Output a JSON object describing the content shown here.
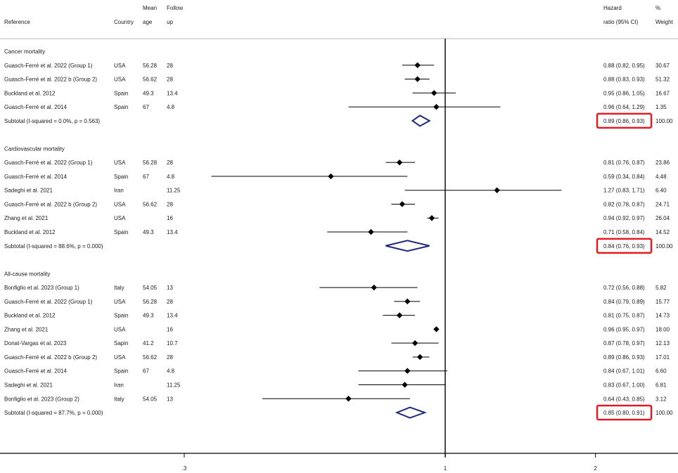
{
  "colors": {
    "text": "#1a1a1a",
    "line": "#000000",
    "diamond": "#1f2a7a",
    "highlight": "#e8141b"
  },
  "chart_data": {
    "type": "forest",
    "x_scale": "log",
    "x_ticks": [
      {
        "value": 0.3,
        "label": ".3"
      },
      {
        "value": 1,
        "label": "1"
      },
      {
        "value": 2,
        "label": "2"
      }
    ],
    "null_line": 1,
    "headers": {
      "reference": "Reference",
      "country": "Country",
      "mean_age_1": "Mean",
      "mean_age_2": "age",
      "follow_up_1": "Follow",
      "follow_up_2": "up",
      "hr_1": "Hazard",
      "hr_2": "ratio (95% CI)",
      "weight_1": "%",
      "weight_2": "Weight"
    },
    "groups": [
      {
        "name": "Cancer mortality",
        "studies": [
          {
            "reference": "Guasch-Ferré et al. 2022 (Group 1)",
            "country": "USA",
            "age": "56.28",
            "follow_up": "28",
            "hr": 0.88,
            "lo": 0.82,
            "hi": 0.95,
            "ci_text": "0.88 (0.82, 0.95)",
            "weight": "30.67"
          },
          {
            "reference": "Guasch-Ferré et al. 2022 b (Group 2)",
            "country": "USA",
            "age": "56.62",
            "follow_up": "28",
            "hr": 0.88,
            "lo": 0.83,
            "hi": 0.93,
            "ci_text": "0.88 (0.83, 0.93)",
            "weight": "51.32"
          },
          {
            "reference": "Buckland et al. 2012",
            "country": "Spain",
            "age": "49.3",
            "follow_up": "13.4",
            "hr": 0.95,
            "lo": 0.86,
            "hi": 1.05,
            "ci_text": "0.95 (0.86, 1.05)",
            "weight": "16.67"
          },
          {
            "reference": "Guasch-Ferré et al. 2014",
            "country": "Spain",
            "age": "67",
            "follow_up": "4.8",
            "hr": 0.96,
            "lo": 0.64,
            "hi": 1.29,
            "ci_text": "0.96 (0.64, 1.29)",
            "weight": "1.35"
          }
        ],
        "subtotal": {
          "label": "Subtotal  (I-squared = 0.0%, p = 0.563)",
          "hr": 0.89,
          "lo": 0.86,
          "hi": 0.93,
          "ci_text": "0.89 (0.86, 0.93)",
          "weight": "100.00"
        }
      },
      {
        "name": "Cardiovascular mortality",
        "studies": [
          {
            "reference": "Guasch-Ferré et al. 2022 (Group 1)",
            "country": "USA",
            "age": "56.28",
            "follow_up": "28",
            "hr": 0.81,
            "lo": 0.76,
            "hi": 0.87,
            "ci_text": "0.81 (0.76, 0.87)",
            "weight": "23.86"
          },
          {
            "reference": "Guasch-Ferré et al. 2014",
            "country": "Spain",
            "age": "67",
            "follow_up": "4.8",
            "hr": 0.59,
            "lo": 0.34,
            "hi": 0.84,
            "ci_text": "0.59 (0.34, 0.84)",
            "weight": "4.48"
          },
          {
            "reference": "Sadeghi et al. 2021",
            "country": "Iran",
            "age": "",
            "follow_up": "11.25",
            "hr": 1.27,
            "lo": 0.83,
            "hi": 1.71,
            "ci_text": "1.27 (0.83, 1.71)",
            "weight": "6.40"
          },
          {
            "reference": "Guasch-Ferré et al. 2022 b (Group 2)",
            "country": "USA",
            "age": "56.62",
            "follow_up": "28",
            "hr": 0.82,
            "lo": 0.78,
            "hi": 0.87,
            "ci_text": "0.82 (0.78, 0.87)",
            "weight": "24.71"
          },
          {
            "reference": "Zhang et al. 2021",
            "country": "USA",
            "age": "",
            "follow_up": "16",
            "hr": 0.94,
            "lo": 0.92,
            "hi": 0.97,
            "ci_text": "0.94 (0.92, 0.97)",
            "weight": "26.04"
          },
          {
            "reference": "Buckland et al. 2012",
            "country": "Spain",
            "age": "49.3",
            "follow_up": "13.4",
            "hr": 0.71,
            "lo": 0.58,
            "hi": 0.84,
            "ci_text": "0.71 (0.58, 0.84)",
            "weight": "14.52"
          }
        ],
        "subtotal": {
          "label": "Subtotal  (I-squared = 88.6%, p = 0.000)",
          "hr": 0.84,
          "lo": 0.76,
          "hi": 0.93,
          "ci_text": "0.84 (0.76, 0.93)",
          "weight": "100.00"
        }
      },
      {
        "name": "All-cause mortality",
        "studies": [
          {
            "reference": "Bonfiglio et al. 2023 (Group 1)",
            "country": "Italy",
            "age": "54.05",
            "follow_up": "13",
            "hr": 0.72,
            "lo": 0.56,
            "hi": 0.88,
            "ci_text": "0.72 (0.56, 0.88)",
            "weight": "5.82"
          },
          {
            "reference": "Guasch-Ferré et al. 2022 (Group 1)",
            "country": "USA",
            "age": "56.28",
            "follow_up": "28",
            "hr": 0.84,
            "lo": 0.79,
            "hi": 0.89,
            "ci_text": "0.84 (0.79, 0.89)",
            "weight": "15.77"
          },
          {
            "reference": "Buckland et al. 2012",
            "country": "Spain",
            "age": "49.3",
            "follow_up": "13.4",
            "hr": 0.81,
            "lo": 0.75,
            "hi": 0.87,
            "ci_text": "0.81 (0.75, 0.87)",
            "weight": "14.73"
          },
          {
            "reference": "Zhang et al. 2021",
            "country": "USA",
            "age": "",
            "follow_up": "16",
            "hr": 0.96,
            "lo": 0.95,
            "hi": 0.97,
            "ci_text": "0.96 (0.95, 0.97)",
            "weight": "18.00"
          },
          {
            "reference": "Donat-Vargas et al. 2023",
            "country": "Sapin",
            "age": "41.2",
            "follow_up": "10.7",
            "hr": 0.87,
            "lo": 0.78,
            "hi": 0.97,
            "ci_text": "0.87 (0.78, 0.97)",
            "weight": "12.13"
          },
          {
            "reference": "Guasch-Ferré et al. 2022 b (Group 2)",
            "country": "USA",
            "age": "56.62",
            "follow_up": "28",
            "hr": 0.89,
            "lo": 0.86,
            "hi": 0.93,
            "ci_text": "0.89 (0.86, 0.93)",
            "weight": "17.01"
          },
          {
            "reference": "Guasch-Ferré et al. 2014",
            "country": "Spain",
            "age": "67",
            "follow_up": "4.8",
            "hr": 0.84,
            "lo": 0.67,
            "hi": 1.01,
            "ci_text": "0.84 (0.67, 1.01)",
            "weight": "6.60"
          },
          {
            "reference": "Sadeghi et al. 2021",
            "country": "Iran",
            "age": "",
            "follow_up": "11.25",
            "hr": 0.83,
            "lo": 0.67,
            "hi": 1.0,
            "ci_text": "0.83 (0.67, 1.00)",
            "weight": "6.81"
          },
          {
            "reference": "Bonfiglio et al. 2023 (Group 2)",
            "country": "Italy",
            "age": "54.05",
            "follow_up": "13",
            "hr": 0.64,
            "lo": 0.43,
            "hi": 0.85,
            "ci_text": "0.64 (0.43, 0.85)",
            "weight": "3.12"
          }
        ],
        "subtotal": {
          "label": "Subtotal  (I-squared = 87.7%, p = 0.000)",
          "hr": 0.85,
          "lo": 0.8,
          "hi": 0.91,
          "ci_text": "0.85 (0.80, 0.91)",
          "weight": "100.00"
        }
      }
    ],
    "highlighted": "subtotal_ci"
  }
}
